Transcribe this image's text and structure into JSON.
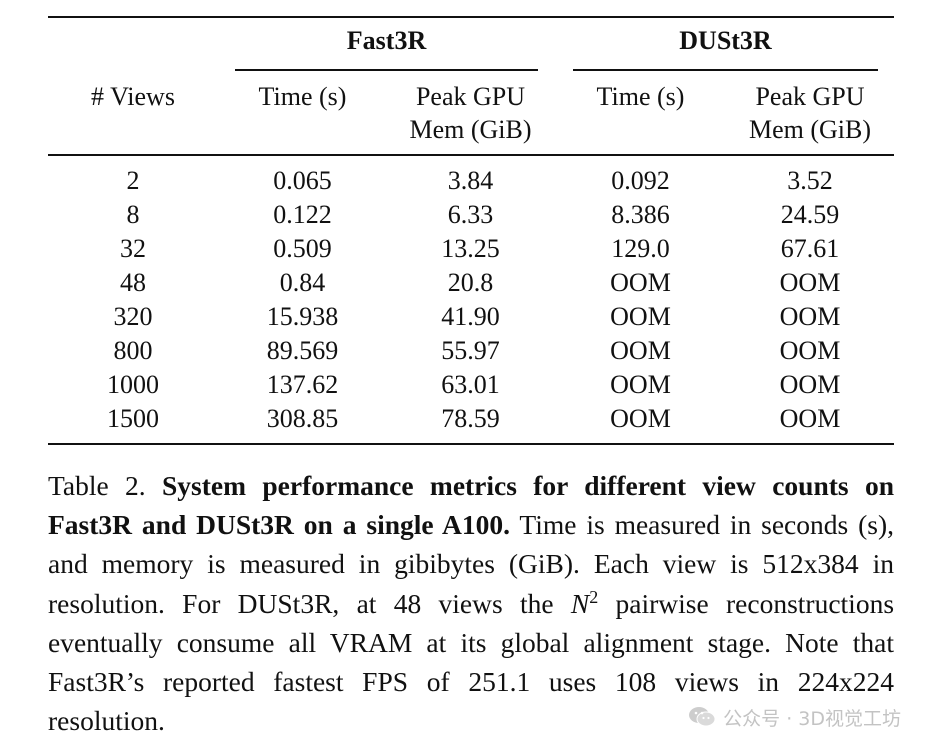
{
  "table": {
    "group_headers": [
      "Fast3R",
      "DUSt3R"
    ],
    "column_headers": {
      "views": "# Views",
      "fast_time": "Time (s)",
      "fast_mem_line1": "Peak GPU",
      "fast_mem_line2": "Mem (GiB)",
      "dust_time": "Time (s)",
      "dust_mem_line1": "Peak GPU",
      "dust_mem_line2": "Mem (GiB)"
    },
    "rows": [
      [
        "2",
        "0.065",
        "3.84",
        "0.092",
        "3.52"
      ],
      [
        "8",
        "0.122",
        "6.33",
        "8.386",
        "24.59"
      ],
      [
        "32",
        "0.509",
        "13.25",
        "129.0",
        "67.61"
      ],
      [
        "48",
        "0.84",
        "20.8",
        "OOM",
        "OOM"
      ],
      [
        "320",
        "15.938",
        "41.90",
        "OOM",
        "OOM"
      ],
      [
        "800",
        "89.569",
        "55.97",
        "OOM",
        "OOM"
      ],
      [
        "1000",
        "137.62",
        "63.01",
        "OOM",
        "OOM"
      ],
      [
        "1500",
        "308.85",
        "78.59",
        "OOM",
        "OOM"
      ]
    ]
  },
  "caption": {
    "label": "Table 2.",
    "bold": "System performance metrics for different view counts on Fast3R and DUSt3R on a single A100.",
    "text_before_math": "Time is measured in seconds (s), and memory is measured in gibibytes (GiB). Each view is 512x384 in resolution.  For DUSt3R, at 48 views the",
    "math_base": "N",
    "math_exp": "2",
    "text_after_math": "pairwise reconstructions eventually consume all VRAM at its global alignment stage. Note that Fast3R’s reported fastest FPS of 251.1 uses 108 views in 224x224 resolution."
  },
  "watermark": {
    "text": "公众号 · 3D视觉工坊",
    "icon": "wechat-icon"
  }
}
